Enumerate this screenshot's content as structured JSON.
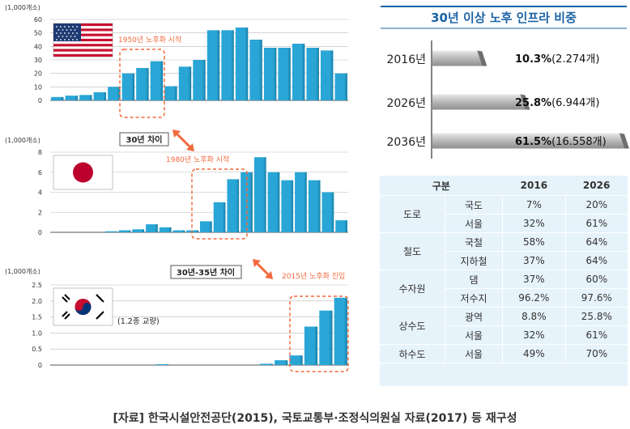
{
  "chart_data": [
    {
      "type": "bar",
      "title": "United States",
      "unit_label": "(1,000개소)",
      "ylim": [
        0,
        60
      ],
      "yticks": [
        0,
        10,
        20,
        30,
        40,
        50,
        60
      ],
      "values": [
        2.5,
        3.5,
        4,
        6,
        10,
        20,
        24,
        29,
        10.5,
        25,
        30,
        52,
        52,
        54,
        45,
        39,
        39,
        42,
        39,
        37,
        20
      ],
      "annotation": "1950년 노후화 시작",
      "highlight_range": [
        5,
        8
      ]
    },
    {
      "type": "bar",
      "title": "Japan",
      "unit_label": "(1,000개소)",
      "ylim": [
        0,
        8
      ],
      "yticks": [
        0,
        2,
        4,
        6,
        8
      ],
      "values": [
        0,
        0,
        0,
        0,
        0.1,
        0.2,
        0.3,
        0.8,
        0.5,
        0.2,
        0.2,
        1.1,
        3.0,
        5.3,
        6.0,
        7.5,
        6.0,
        5.2,
        6.0,
        5.2,
        4.0,
        1.2
      ],
      "annotation": "1980년 노후화 시작",
      "gap_label": "30년 차이",
      "highlight_range": [
        11,
        14
      ]
    },
    {
      "type": "bar",
      "title": "Korea",
      "unit_label": "(1,000개소)",
      "ylim": [
        0,
        2.5
      ],
      "yticks": [
        0,
        0.5,
        1.0,
        1.5,
        2.0,
        2.5
      ],
      "ytick_labels": [
        "0",
        "0.5",
        "1.0",
        "1.5",
        "2.0",
        "2.5"
      ],
      "values": [
        0,
        0,
        0,
        0,
        0,
        0,
        0,
        0.01,
        0,
        0,
        0,
        0,
        0,
        0,
        0.04,
        0.15,
        0.3,
        1.2,
        1.7,
        2.1
      ],
      "annotation": "2015년 노후화 진입",
      "gap_label": "30년-35년 차이",
      "note": "(1.2종 교량)",
      "highlight_range": [
        16,
        19
      ]
    },
    {
      "type": "bar",
      "orientation": "horizontal",
      "title": "30년 이상 노후 인프라 비중",
      "categories": [
        "2016년",
        "2026년",
        "2036년"
      ],
      "values": [
        10.3,
        25.8,
        61.5
      ],
      "pct_labels": [
        "10.3%",
        "25.8%",
        "61.5%"
      ],
      "count_labels": [
        "(2.274개)",
        "(6.944개)",
        "(16.558개)"
      ],
      "xlim": [
        0,
        61.5
      ]
    }
  ],
  "table": {
    "headers": [
      "구분",
      "2016",
      "2026"
    ],
    "groups": [
      {
        "name": "도로",
        "rows": [
          {
            "sub": "국도",
            "v2016": "7%",
            "v2026": "20%"
          },
          {
            "sub": "서울",
            "v2016": "32%",
            "v2026": "61%"
          }
        ]
      },
      {
        "name": "철도",
        "rows": [
          {
            "sub": "국철",
            "v2016": "58%",
            "v2026": "64%"
          },
          {
            "sub": "지하철",
            "v2016": "37%",
            "v2026": "64%"
          }
        ]
      },
      {
        "name": "수자원",
        "rows": [
          {
            "sub": "댐",
            "v2016": "37%",
            "v2026": "60%"
          },
          {
            "sub": "저수지",
            "v2016": "96.2%",
            "v2026": "97.6%"
          }
        ]
      },
      {
        "name": "상수도",
        "rows": [
          {
            "sub": "광역",
            "v2016": "8.8%",
            "v2026": "25.8%"
          },
          {
            "sub": "서울",
            "v2016": "32%",
            "v2026": "61%"
          }
        ]
      },
      {
        "name": "하수도",
        "rows": [
          {
            "sub": "서울",
            "v2016": "49%",
            "v2026": "70%"
          }
        ]
      }
    ]
  },
  "source": "[자료] 한국시설안전공단(2015), 국토교통부·조정식의원실 자료(2017) 등 재구성",
  "colors": {
    "bar": "#2aa6d6",
    "bar_dark": "#177ea6",
    "accent": "#f26a3d",
    "title_blue": "#1a63a6"
  }
}
